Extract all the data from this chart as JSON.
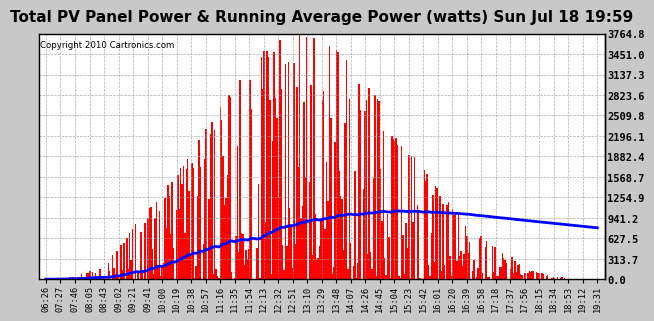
{
  "title": "Total PV Panel Power & Running Average Power (watts) Sun Jul 18 19:59",
  "copyright": "Copyright 2010 Cartronics.com",
  "yticks": [
    0.0,
    313.7,
    627.5,
    941.2,
    1254.9,
    1568.7,
    1882.4,
    2196.1,
    2509.8,
    2823.6,
    3137.3,
    3451.0,
    3764.8
  ],
  "ymax": 3764.8,
  "background_color": "#c8c8c8",
  "plot_bg_color": "#ffffff",
  "bar_color": "#ff0000",
  "line_color": "#0000ff",
  "grid_color": "#999999",
  "title_fontsize": 11,
  "xtick_labels": [
    "06:26",
    "07:27",
    "07:46",
    "08:05",
    "08:43",
    "09:02",
    "09:21",
    "09:41",
    "10:00",
    "10:19",
    "10:38",
    "10:57",
    "11:16",
    "11:35",
    "11:54",
    "12:13",
    "12:32",
    "12:51",
    "13:10",
    "13:29",
    "13:48",
    "14:07",
    "14:26",
    "14:45",
    "15:04",
    "15:23",
    "15:42",
    "16:01",
    "16:20",
    "16:39",
    "16:58",
    "17:18",
    "17:37",
    "17:56",
    "18:15",
    "18:34",
    "18:53",
    "19:12",
    "19:31"
  ],
  "n_xticks": 39,
  "n_bars": 390
}
